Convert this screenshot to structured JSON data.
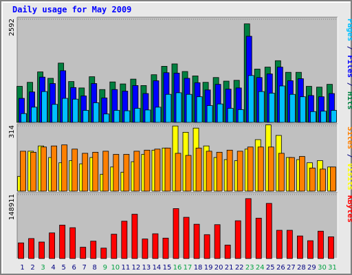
{
  "title": "Daily usage for May 2009",
  "chart_data": [
    {
      "type": "bar",
      "panel": "hits-files-pages",
      "categories": [
        "1",
        "2",
        "3",
        "4",
        "5",
        "6",
        "7",
        "8",
        "9",
        "10",
        "11",
        "12",
        "13",
        "14",
        "15",
        "16",
        "17",
        "18",
        "19",
        "20",
        "21",
        "22",
        "23",
        "24",
        "25",
        "26",
        "27",
        "28",
        "29",
        "30",
        "31"
      ],
      "weekend_days": [
        "3",
        "9",
        "10",
        "16",
        "17",
        "23",
        "24",
        "30",
        "31"
      ],
      "y_max_label": "2592",
      "ylim": [
        0,
        2592
      ],
      "series": [
        {
          "name": "Hits",
          "color": "#008040",
          "values": [
            900,
            1000,
            1260,
            1100,
            1480,
            1020,
            860,
            1140,
            820,
            1010,
            960,
            1080,
            920,
            1190,
            1400,
            1460,
            1270,
            1160,
            1000,
            1120,
            1030,
            1050,
            2460,
            1330,
            1380,
            1540,
            1250,
            1250,
            900,
            880,
            950
          ]
        },
        {
          "name": "Files",
          "color": "#0000ff",
          "values": [
            600,
            760,
            1130,
            970,
            1290,
            870,
            660,
            970,
            610,
            820,
            780,
            920,
            720,
            1040,
            1240,
            1230,
            1100,
            990,
            810,
            950,
            830,
            860,
            2150,
            1120,
            1210,
            1380,
            1040,
            1090,
            670,
            640,
            720
          ]
        },
        {
          "name": "Pages",
          "color": "#00c0ff",
          "values": [
            220,
            380,
            770,
            450,
            600,
            580,
            300,
            490,
            210,
            300,
            290,
            350,
            310,
            380,
            700,
            740,
            700,
            640,
            420,
            460,
            350,
            320,
            1170,
            770,
            730,
            910,
            700,
            640,
            270,
            280,
            300
          ]
        }
      ],
      "axis_label": "Pages / Files / Hits",
      "axis_label_parts": [
        {
          "text": "Pages",
          "color": "#00c0ff"
        },
        {
          "text": " / ",
          "color": "#000080"
        },
        {
          "text": "Files",
          "color": "#0000ff"
        },
        {
          "text": " / ",
          "color": "#000080"
        },
        {
          "text": "Hits",
          "color": "#008040"
        }
      ]
    },
    {
      "type": "bar",
      "panel": "sites-visits",
      "categories": [
        "1",
        "2",
        "3",
        "4",
        "5",
        "6",
        "7",
        "8",
        "9",
        "10",
        "11",
        "12",
        "13",
        "14",
        "15",
        "16",
        "17",
        "18",
        "19",
        "20",
        "21",
        "22",
        "23",
        "24",
        "25",
        "26",
        "27",
        "28",
        "29",
        "30",
        "31"
      ],
      "y_max_label": "314",
      "ylim": [
        0,
        314
      ],
      "series": [
        {
          "name": "Visits",
          "color": "#ffff00",
          "values": [
            70,
            190,
            215,
            160,
            135,
            145,
            130,
            160,
            80,
            115,
            90,
            140,
            175,
            195,
            205,
            310,
            280,
            300,
            215,
            160,
            150,
            145,
            200,
            245,
            315,
            265,
            160,
            150,
            135,
            145,
            115
          ]
        },
        {
          "name": "Sites",
          "color": "#ff8000",
          "values": [
            190,
            185,
            210,
            215,
            220,
            200,
            180,
            185,
            190,
            175,
            175,
            190,
            195,
            200,
            205,
            180,
            170,
            205,
            190,
            185,
            195,
            190,
            210,
            210,
            210,
            180,
            160,
            165,
            110,
            105,
            115
          ]
        }
      ],
      "axis_label": "Sites / Visits",
      "axis_label_parts": [
        {
          "text": "Sites",
          "color": "#ff8000"
        },
        {
          "text": " / ",
          "color": "#000080"
        },
        {
          "text": "Visits",
          "color": "#ffff00"
        }
      ]
    },
    {
      "type": "bar",
      "panel": "kbytes",
      "categories": [
        "1",
        "2",
        "3",
        "4",
        "5",
        "6",
        "7",
        "8",
        "9",
        "10",
        "11",
        "12",
        "13",
        "14",
        "15",
        "16",
        "17",
        "18",
        "19",
        "20",
        "21",
        "22",
        "23",
        "24",
        "25",
        "26",
        "27",
        "28",
        "29",
        "30",
        "31"
      ],
      "y_max_label": "148911",
      "ylim": [
        0,
        148911
      ],
      "series": [
        {
          "name": "KBytes",
          "color": "#ff0000",
          "values": [
            36000,
            46000,
            38000,
            59000,
            77000,
            71000,
            26000,
            40000,
            24000,
            56000,
            86000,
            102000,
            45000,
            57000,
            47000,
            115000,
            95000,
            79000,
            55000,
            78000,
            31000,
            87000,
            138000,
            93000,
            127000,
            65000,
            65000,
            52000,
            41000,
            63000,
            50000
          ]
        }
      ],
      "axis_label": "KBytes",
      "axis_label_parts": [
        {
          "text": "KBytes",
          "color": "#ff0000"
        }
      ]
    }
  ],
  "colors": {
    "panel_bg": "#c0c0c0",
    "frame_bg": "#e8e8e8",
    "title": "#0000ff",
    "weekday_tick": "#000080",
    "weekend_tick": "#00a040"
  }
}
